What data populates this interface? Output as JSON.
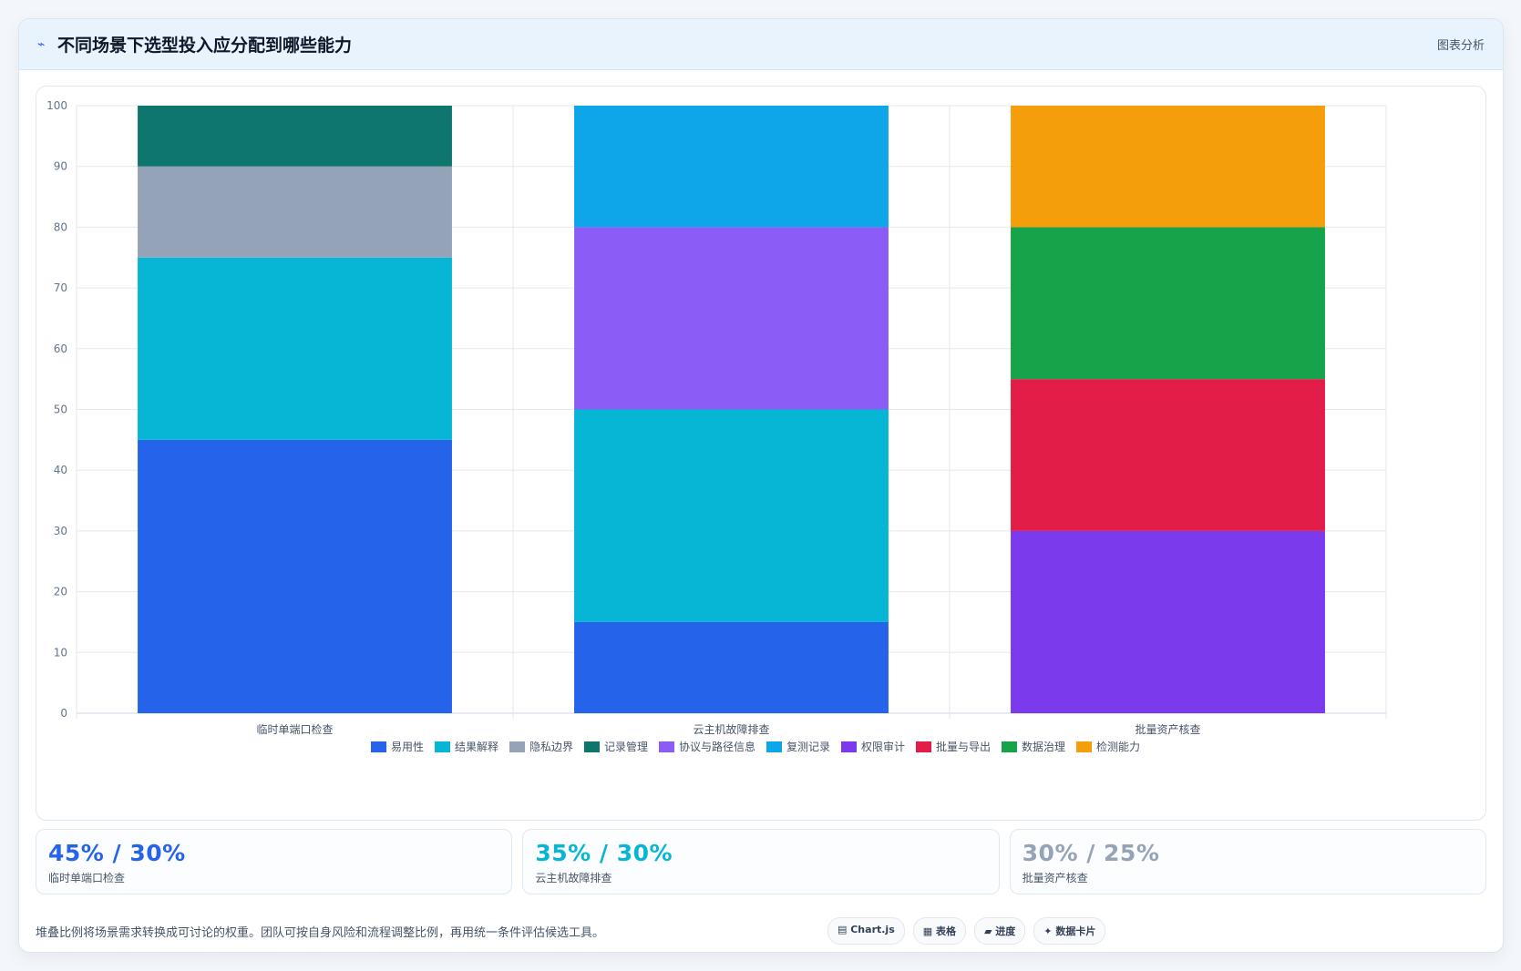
{
  "header": {
    "icon": "pulse-icon",
    "title": "不同场景下选型投入应分配到哪些能力",
    "tag": "图表分析"
  },
  "chart_data": {
    "type": "bar",
    "stacked": true,
    "categories": [
      "临时单端口检查",
      "云主机故障排查",
      "批量资产核查"
    ],
    "ylim": [
      0,
      100
    ],
    "yticks": [
      0,
      10,
      20,
      30,
      40,
      50,
      60,
      70,
      80,
      90,
      100
    ],
    "grid": true,
    "legend_position": "bottom",
    "series": [
      {
        "name": "易用性",
        "color": "#2563eb",
        "values": [
          45,
          15,
          0
        ]
      },
      {
        "name": "结果解释",
        "color": "#06b6d4",
        "values": [
          30,
          35,
          0
        ]
      },
      {
        "name": "隐私边界",
        "color": "#94a3b8",
        "values": [
          15,
          0,
          0
        ]
      },
      {
        "name": "记录管理",
        "color": "#0f766e",
        "values": [
          10,
          0,
          0
        ]
      },
      {
        "name": "协议与路径信息",
        "color": "#8b5cf6",
        "values": [
          0,
          30,
          0
        ]
      },
      {
        "name": "复测记录",
        "color": "#0ea5e9",
        "values": [
          0,
          20,
          0
        ]
      },
      {
        "name": "权限审计",
        "color": "#7c3aed",
        "values": [
          0,
          0,
          30
        ]
      },
      {
        "name": "批量与导出",
        "color": "#e11d48",
        "values": [
          0,
          0,
          25
        ]
      },
      {
        "name": "数据治理",
        "color": "#16a34a",
        "values": [
          0,
          0,
          25
        ]
      },
      {
        "name": "检测能力",
        "color": "#f59e0b",
        "values": [
          0,
          0,
          20
        ]
      }
    ]
  },
  "stats": [
    {
      "value": "45% / 30%",
      "label": "临时单端口检查",
      "color": "#2563eb"
    },
    {
      "value": "35% / 30%",
      "label": "云主机故障排查",
      "color": "#06b6d4"
    },
    {
      "value": "30% / 25%",
      "label": "批量资产核查",
      "color": "#94a3b8"
    }
  ],
  "footer": {
    "note": "堆叠比例将场景需求转换成可讨论的权重。团队可按自身风险和流程调整比例，再用统一条件评估候选工具。",
    "chips": [
      "▤ Chart.js",
      "▦ 表格",
      "▰ 进度",
      "✦ 数据卡片"
    ]
  }
}
